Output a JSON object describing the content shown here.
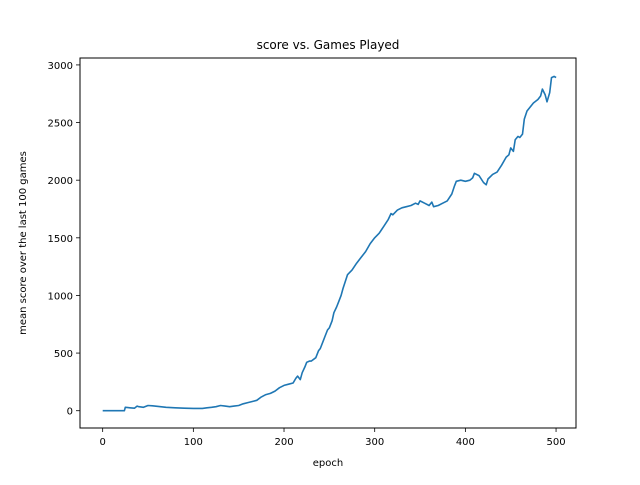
{
  "chart_data": {
    "type": "line",
    "title": "score vs. Games Played",
    "xlabel": "epoch",
    "ylabel": "mean score over the last 100 games",
    "xlim": [
      -25,
      522
    ],
    "ylim": [
      -150,
      3060
    ],
    "xticks": [
      0,
      100,
      200,
      300,
      400,
      500
    ],
    "yticks": [
      0,
      500,
      1000,
      1500,
      2000,
      2500,
      3000
    ],
    "grid": false,
    "line_color": "#1f77b4",
    "series": [
      {
        "x": [
          0,
          10,
          20,
          24,
          25,
          30,
          35,
          38,
          40,
          45,
          50,
          55,
          60,
          70,
          80,
          90,
          100,
          110,
          115,
          120,
          125,
          130,
          135,
          140,
          145,
          150,
          155,
          160,
          165,
          170,
          175,
          180,
          185,
          190,
          195,
          200,
          205,
          210,
          213,
          215,
          218,
          220,
          223,
          225,
          228,
          230,
          235,
          238,
          240,
          243,
          245,
          248,
          250,
          253,
          255,
          258,
          260,
          263,
          265,
          270,
          275,
          280,
          285,
          290,
          295,
          300,
          305,
          310,
          315,
          318,
          320,
          325,
          330,
          335,
          340,
          345,
          348,
          350,
          355,
          360,
          363,
          365,
          370,
          375,
          380,
          385,
          388,
          390,
          395,
          400,
          405,
          408,
          410,
          415,
          420,
          423,
          425,
          430,
          435,
          440,
          445,
          448,
          450,
          453,
          455,
          458,
          460,
          463,
          465,
          468,
          470,
          475,
          480,
          483,
          485,
          488,
          490,
          493,
          495,
          498,
          500
        ],
        "y": [
          0,
          0,
          0,
          0,
          30,
          25,
          22,
          40,
          35,
          30,
          45,
          43,
          38,
          30,
          25,
          22,
          20,
          20,
          25,
          30,
          35,
          45,
          40,
          35,
          40,
          45,
          60,
          70,
          80,
          90,
          120,
          140,
          150,
          170,
          200,
          220,
          230,
          240,
          280,
          300,
          270,
          330,
          380,
          420,
          430,
          430,
          460,
          520,
          540,
          600,
          640,
          700,
          720,
          780,
          850,
          900,
          940,
          1000,
          1060,
          1180,
          1220,
          1280,
          1330,
          1380,
          1450,
          1500,
          1540,
          1600,
          1660,
          1710,
          1700,
          1740,
          1760,
          1770,
          1780,
          1800,
          1790,
          1820,
          1800,
          1780,
          1810,
          1770,
          1780,
          1800,
          1820,
          1880,
          1950,
          1990,
          2000,
          1990,
          2000,
          2020,
          2060,
          2040,
          1980,
          1960,
          2010,
          2050,
          2070,
          2130,
          2200,
          2220,
          2280,
          2250,
          2350,
          2380,
          2370,
          2400,
          2530,
          2600,
          2620,
          2670,
          2700,
          2730,
          2790,
          2740,
          2680,
          2760,
          2890,
          2900,
          2890
        ]
      }
    ]
  }
}
